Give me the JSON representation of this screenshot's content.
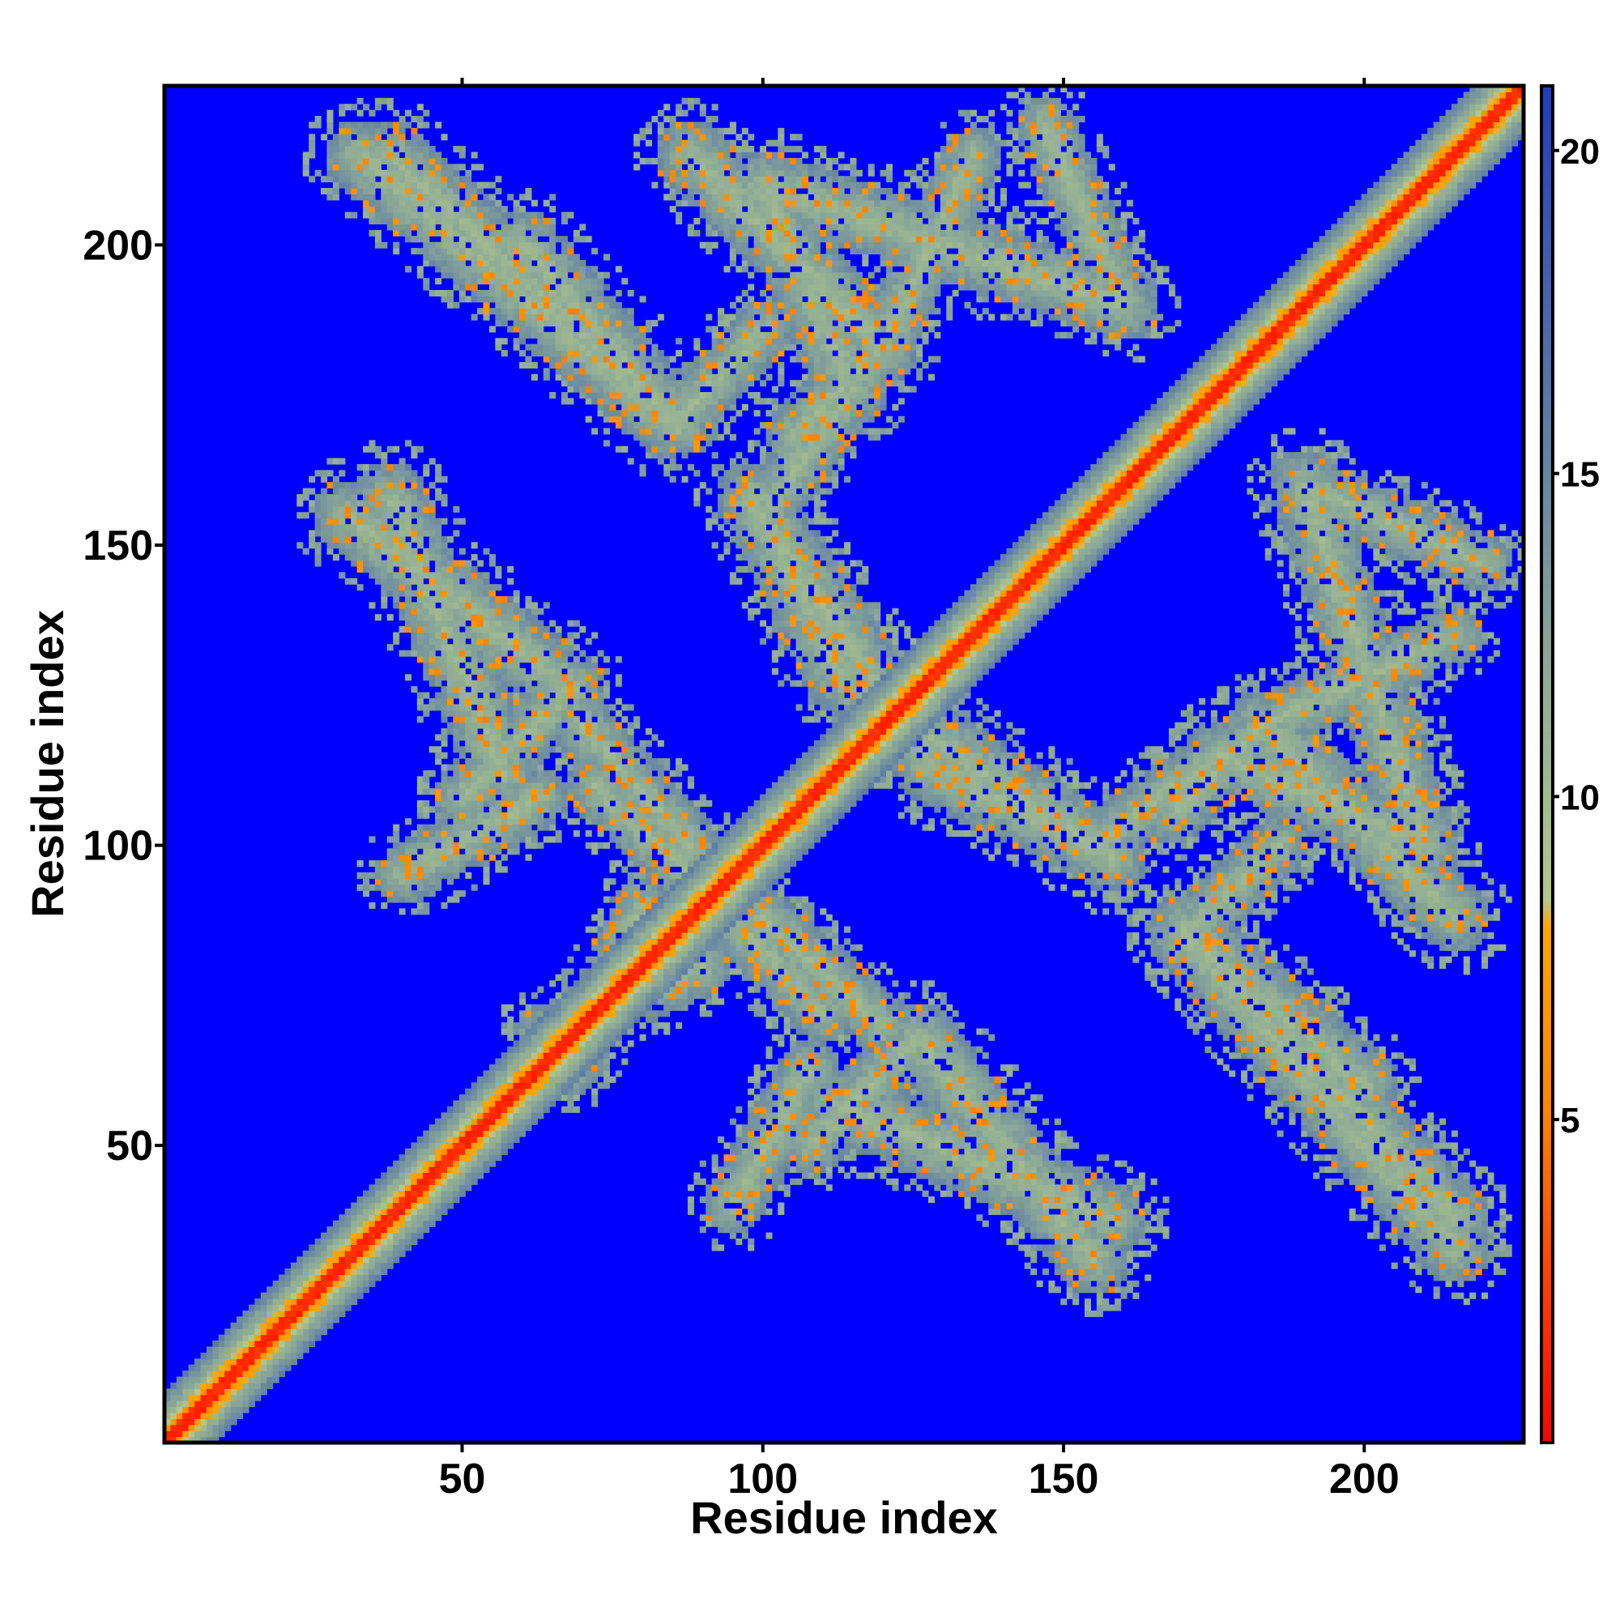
{
  "chart_data": {
    "type": "heatmap",
    "title": "",
    "xlabel": "Residue index",
    "ylabel": "Residue index",
    "xlim": [
      1,
      226
    ],
    "ylim": [
      1,
      226
    ],
    "x_ticks": [
      50,
      100,
      150,
      200
    ],
    "y_ticks": [
      50,
      100,
      150,
      200
    ],
    "colorbar": {
      "range": [
        0,
        21
      ],
      "ticks": [
        5,
        10,
        15,
        20
      ],
      "stops": [
        {
          "value": 0,
          "color": "#ff0000"
        },
        {
          "value": 5,
          "color": "#ff8000"
        },
        {
          "value": 8,
          "color": "#ffa500"
        },
        {
          "value": 8.5,
          "color": "#b4c88c"
        },
        {
          "value": 12,
          "color": "#8caa96"
        },
        {
          "value": 21,
          "color": "#1f3cbe"
        }
      ]
    },
    "background_color": "#0000ff",
    "background_value": 21,
    "diagonal": {
      "core_value": 1,
      "inner_halfwidth": 3,
      "outer_halfwidth": 8
    },
    "contact_bands": [
      {
        "from": [
          33,
          215
        ],
        "to": [
          85,
          170
        ],
        "halfwidth": 6
      },
      {
        "from": [
          85,
          170
        ],
        "to": [
          100,
          186
        ],
        "halfwidth": 5
      },
      {
        "from": [
          88,
          215
        ],
        "to": [
          120,
          183
        ],
        "halfwidth": 6
      },
      {
        "from": [
          120,
          183
        ],
        "to": [
          105,
          168
        ],
        "halfwidth": 5
      },
      {
        "from": [
          120,
          183
        ],
        "to": [
          135,
          215
        ],
        "halfwidth": 5
      },
      {
        "from": [
          31,
          155
        ],
        "to": [
          68,
          126
        ],
        "halfwidth": 6
      },
      {
        "from": [
          68,
          126
        ],
        "to": [
          50,
          108
        ],
        "halfwidth": 5
      },
      {
        "from": [
          98,
          158
        ],
        "to": [
          128,
          113
        ],
        "halfwidth": 6
      },
      {
        "from": [
          128,
          113
        ],
        "to": [
          155,
          100
        ],
        "halfwidth": 6
      },
      {
        "from": [
          155,
          100
        ],
        "to": [
          176,
          115
        ],
        "halfwidth": 5
      },
      {
        "from": [
          176,
          115
        ],
        "to": [
          210,
          100
        ],
        "halfwidth": 6
      },
      {
        "from": [
          190,
          160
        ],
        "to": [
          210,
          100
        ],
        "halfwidth": 6
      },
      {
        "from": [
          190,
          160
        ],
        "to": [
          220,
          147
        ],
        "halfwidth": 5
      },
      {
        "from": [
          100,
          88
        ],
        "to": [
          120,
          70
        ],
        "halfwidth": 5
      },
      {
        "from": [
          170,
          86
        ],
        "to": [
          200,
          60
        ],
        "halfwidth": 6
      },
      {
        "from": [
          170,
          86
        ],
        "to": [
          215,
          38
        ],
        "halfwidth": 6
      },
      {
        "from": [
          112,
          57
        ],
        "to": [
          158,
          38
        ],
        "halfwidth": 6
      },
      {
        "from": [
          108,
          63
        ],
        "to": [
          95,
          40
        ],
        "halfwidth": 5
      },
      {
        "from": [
          80,
          90
        ],
        "to": [
          68,
          63
        ],
        "halfwidth": 5
      },
      {
        "from": [
          72,
          110
        ],
        "to": [
          95,
          88
        ],
        "halfwidth": 5
      }
    ]
  }
}
